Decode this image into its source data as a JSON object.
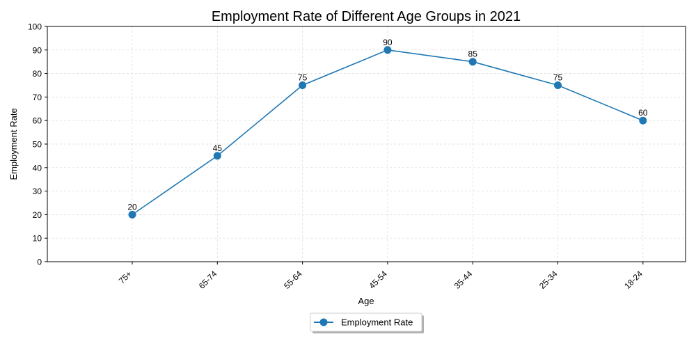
{
  "chart_data": {
    "type": "line",
    "title": "Employment Rate of Different Age Groups in 2021",
    "xlabel": "Age",
    "ylabel": "Employment Rate",
    "categories": [
      "75+",
      "65-74",
      "55-64",
      "45-54",
      "35-44",
      "25-34",
      "18-24"
    ],
    "series": [
      {
        "name": "Employment Rate",
        "values": [
          20,
          45,
          75,
          90,
          85,
          75,
          60
        ],
        "color": "#1f77b4"
      }
    ],
    "ylim": [
      0,
      100
    ],
    "yticks": [
      0,
      10,
      20,
      30,
      40,
      50,
      60,
      70,
      80,
      90,
      100
    ],
    "grid": true,
    "legend": "bottom-center",
    "data_labels": true
  }
}
